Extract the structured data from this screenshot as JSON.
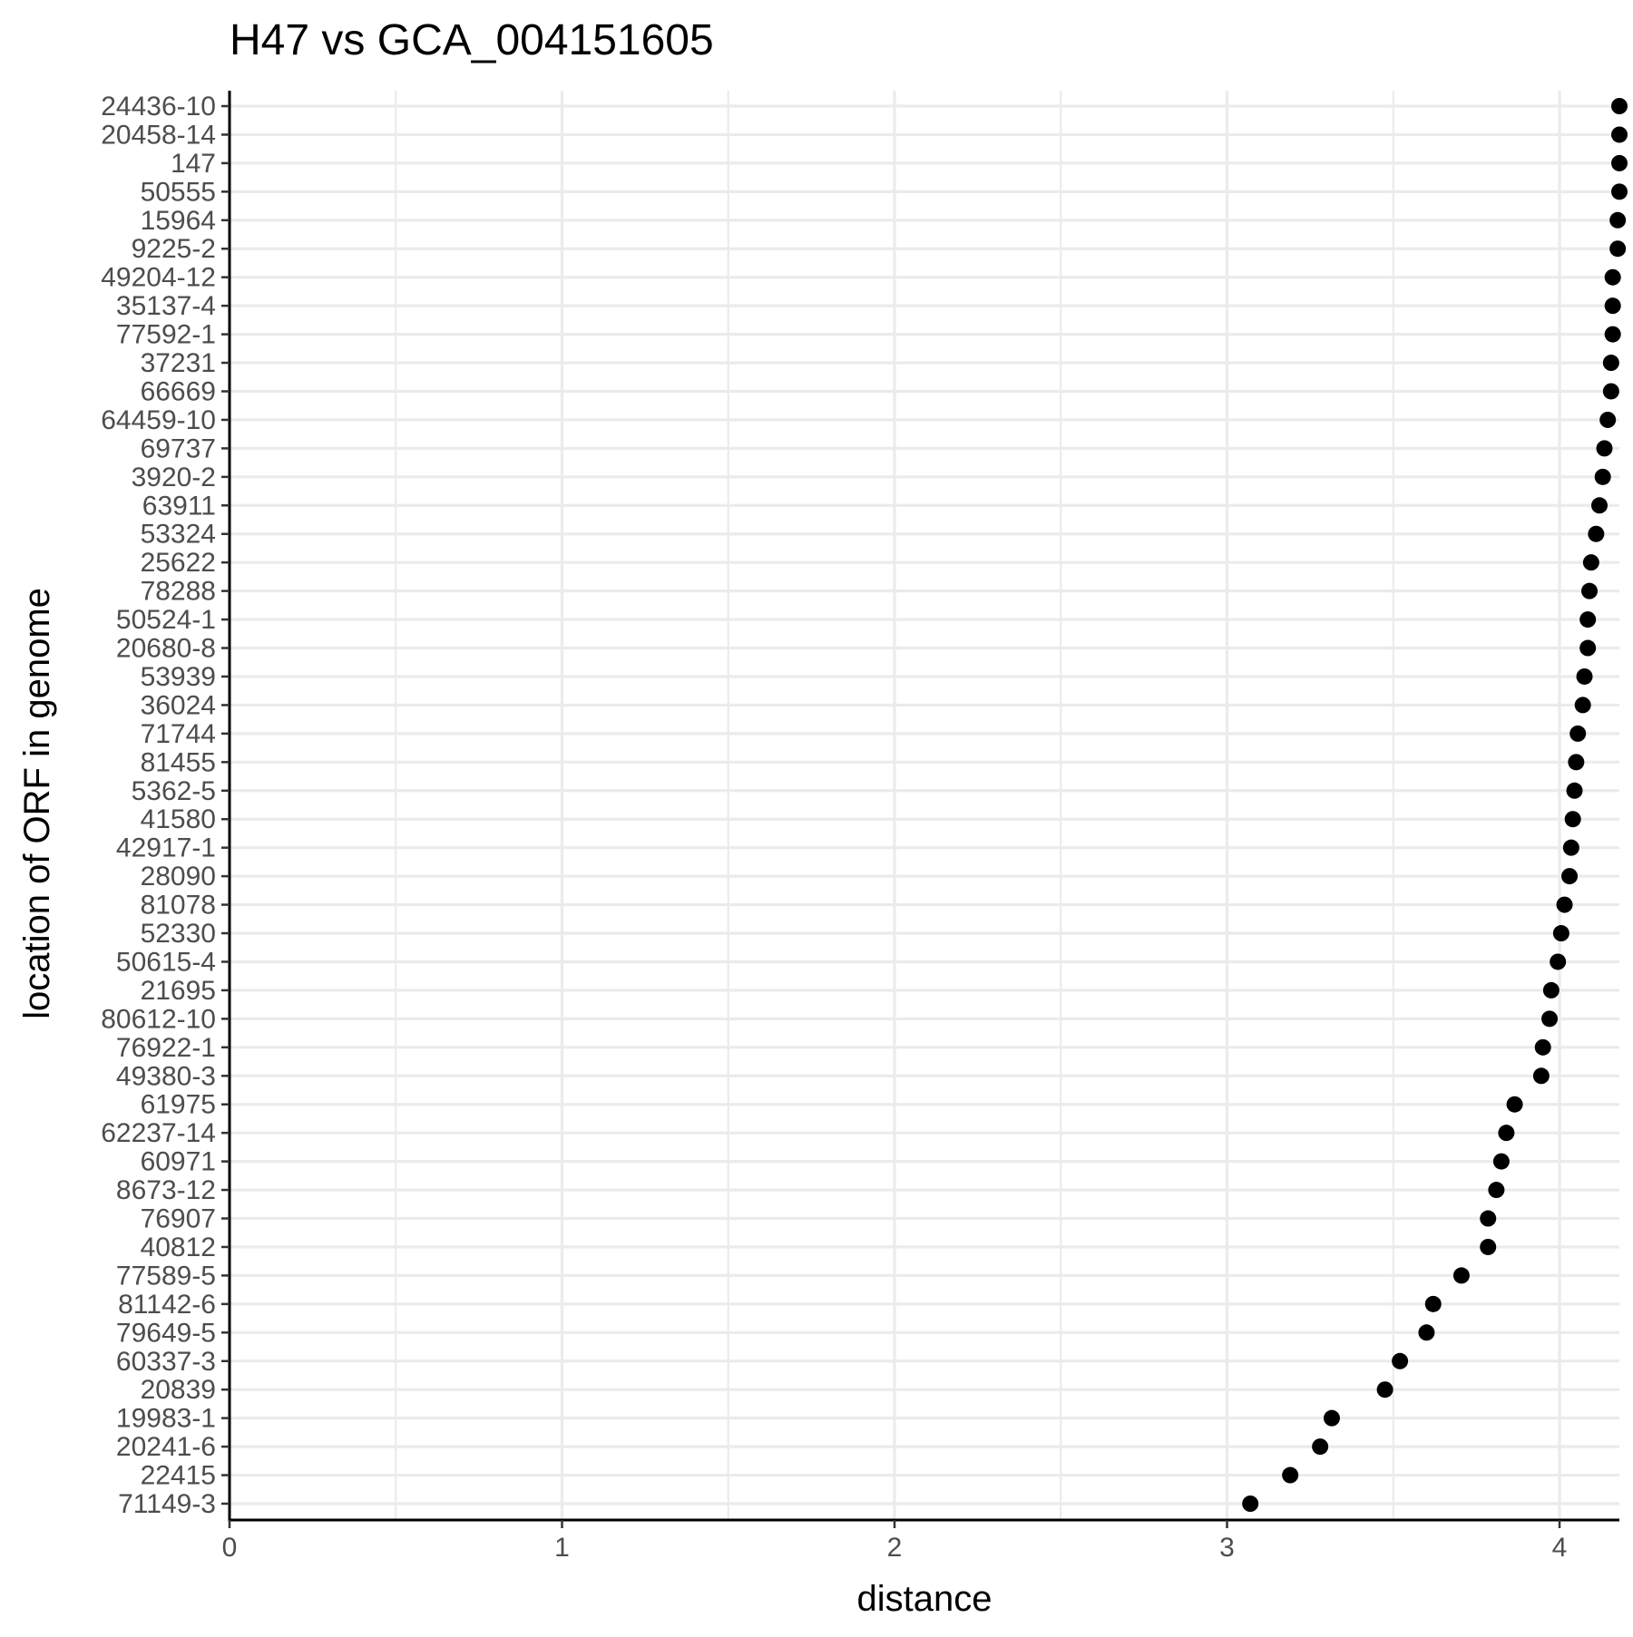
{
  "chart_data": {
    "type": "scatter",
    "title": "H47 vs GCA_004151605",
    "xlabel": "distance",
    "ylabel": "location of ORF in genome",
    "xlim": [
      0,
      4.18
    ],
    "x_ticks": [
      0,
      1,
      2,
      3,
      4
    ],
    "x_tick_labels": [
      "0",
      "1",
      "2",
      "3",
      "4"
    ],
    "grid": true,
    "point_color": "#000000",
    "grid_color": "#ebebeb",
    "categories": [
      "24436-10",
      "20458-14",
      "147",
      "50555",
      "15964",
      "9225-2",
      "49204-12",
      "35137-4",
      "77592-1",
      "37231",
      "66669",
      "64459-10",
      "69737",
      "3920-2",
      "63911",
      "53324",
      "25622",
      "78288",
      "50524-1",
      "20680-8",
      "53939",
      "36024",
      "71744",
      "81455",
      "5362-5",
      "41580",
      "42917-1",
      "28090",
      "81078",
      "52330",
      "50615-4",
      "21695",
      "80612-10",
      "76922-1",
      "49380-3",
      "61975",
      "62237-14",
      "60971",
      "8673-12",
      "76907",
      "40812",
      "77589-5",
      "81142-6",
      "79649-5",
      "60337-3",
      "20839",
      "19983-1",
      "20241-6",
      "22415",
      "71149-3"
    ],
    "values": [
      4.18,
      4.18,
      4.18,
      4.18,
      4.175,
      4.175,
      4.16,
      4.16,
      4.16,
      4.155,
      4.155,
      4.145,
      4.135,
      4.13,
      4.12,
      4.11,
      4.095,
      4.09,
      4.085,
      4.085,
      4.075,
      4.07,
      4.055,
      4.05,
      4.045,
      4.04,
      4.035,
      4.03,
      4.015,
      4.005,
      3.995,
      3.975,
      3.97,
      3.95,
      3.945,
      3.865,
      3.84,
      3.825,
      3.81,
      3.785,
      3.785,
      3.705,
      3.62,
      3.6,
      3.52,
      3.475,
      3.315,
      3.28,
      3.19,
      3.07
    ]
  }
}
